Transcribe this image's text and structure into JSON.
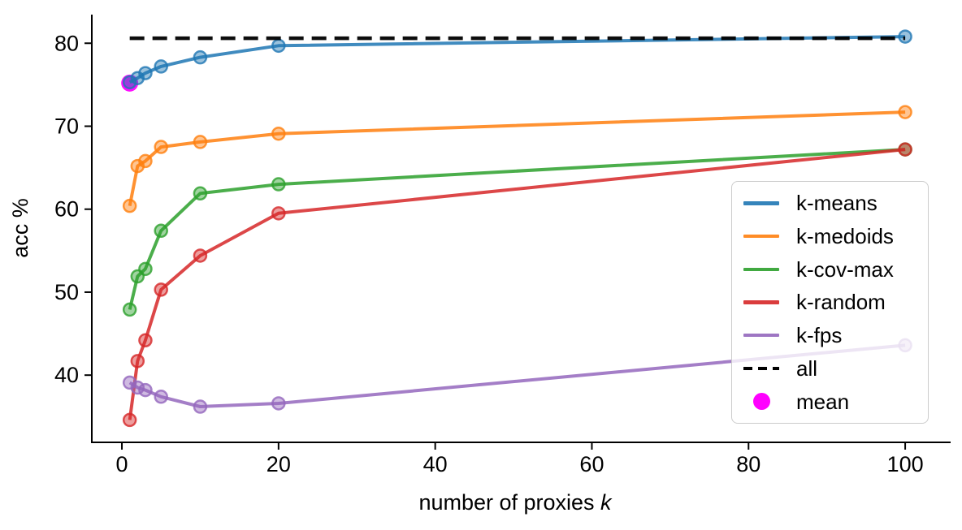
{
  "figure": {
    "xlabel_prefix": "number of proxies ",
    "xlabel_italic": "k",
    "ylabel": "acc %"
  },
  "chart_data": {
    "type": "line",
    "title": "",
    "xlabel": "number of proxies k",
    "ylabel": "acc %",
    "x": [
      1,
      2,
      3,
      5,
      10,
      20,
      100
    ],
    "series": [
      {
        "name": "k-means",
        "color": "#1f77b4",
        "values": [
          75.3,
          75.8,
          76.4,
          77.2,
          78.3,
          79.7,
          80.8
        ]
      },
      {
        "name": "k-medoids",
        "color": "#ff7f0e",
        "values": [
          60.4,
          65.2,
          65.8,
          67.5,
          68.1,
          69.1,
          71.7
        ]
      },
      {
        "name": "k-cov-max",
        "color": "#2ca02c",
        "values": [
          47.9,
          51.9,
          52.8,
          57.4,
          61.9,
          63.0,
          67.2
        ]
      },
      {
        "name": "k-random",
        "color": "#d62728",
        "values": [
          34.6,
          41.7,
          44.2,
          50.3,
          54.4,
          59.5,
          67.2
        ]
      },
      {
        "name": "k-fps",
        "color": "#9467bd",
        "values": [
          39.1,
          38.5,
          38.2,
          37.4,
          36.2,
          36.6,
          43.6
        ]
      }
    ],
    "reference_line": {
      "name": "all",
      "value": 80.6,
      "color": "#000000",
      "style": "dashed",
      "x_start": 1,
      "x_end": 100
    },
    "highlight_point": {
      "name": "mean",
      "x": 1,
      "y": 75.2,
      "color": "#ff00ff"
    },
    "x_ticks": [
      0,
      20,
      40,
      60,
      80,
      100
    ],
    "y_ticks": [
      40,
      50,
      60,
      70,
      80
    ],
    "xlim": [
      -3.84,
      105.8
    ],
    "ylim": [
      31.9,
      83.45
    ],
    "grid": false,
    "legend_position": "right"
  }
}
